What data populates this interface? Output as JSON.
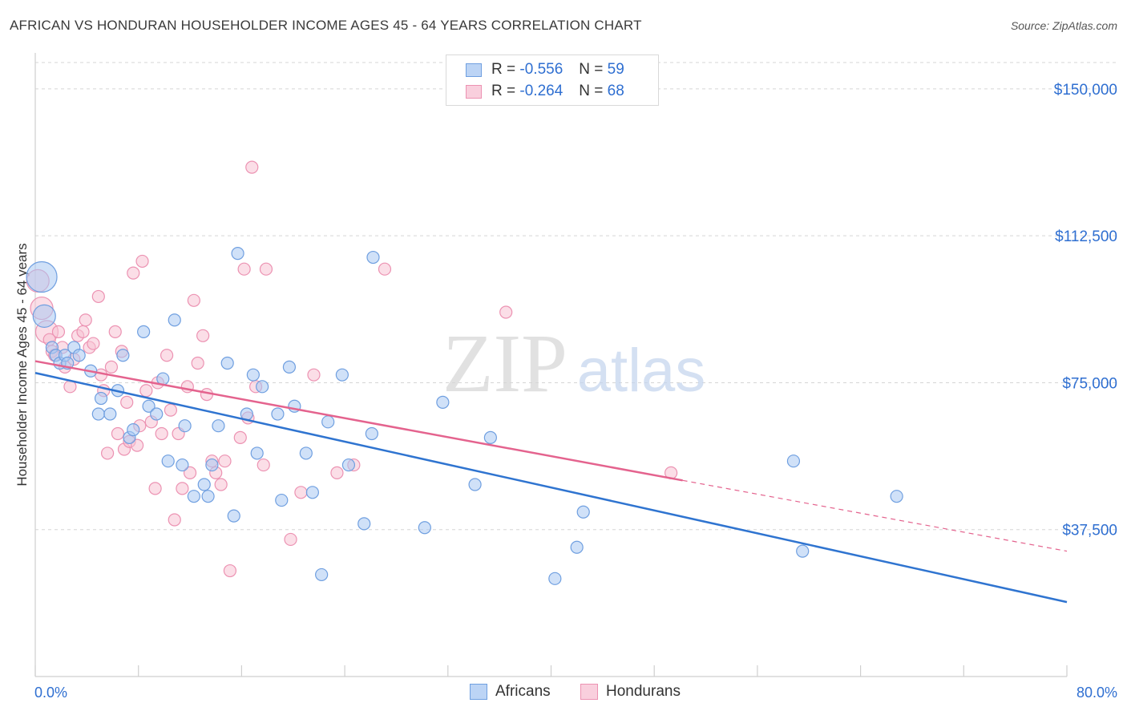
{
  "title": "AFRICAN VS HONDURAN HOUSEHOLDER INCOME AGES 45 - 64 YEARS CORRELATION CHART",
  "source": "Source: ZipAtlas.com",
  "watermark": {
    "zip": "ZIP",
    "atlas": "atlas"
  },
  "legend": {
    "africans": {
      "r_label": "R =",
      "r_value": "-0.556",
      "n_label": "N =",
      "n_value": "59"
    },
    "hondurans": {
      "r_label": "R =",
      "r_value": "-0.264",
      "n_label": "N =",
      "n_value": "68"
    }
  },
  "colors": {
    "africans_fill": "#a9c8f2",
    "africans_stroke": "#6f9fe0",
    "africans_line": "#2f74d0",
    "hondurans_fill": "#f7c2d4",
    "hondurans_stroke": "#ec92b2",
    "hondurans_line": "#e4638e",
    "tick_label": "#2f6fd1"
  },
  "chart_data": {
    "type": "scatter",
    "title": "AFRICAN VS HONDURAN HOUSEHOLDER INCOME AGES 45 - 64 YEARS CORRELATION CHART",
    "xlabel": "",
    "ylabel": "Householder Income Ages 45 - 64 years",
    "xlim": [
      0,
      80
    ],
    "ylim": [
      0,
      160000
    ],
    "x_tick_labels": [
      "0.0%",
      "80.0%"
    ],
    "y_ticks": [
      37500,
      75000,
      112500,
      150000
    ],
    "y_tick_labels": [
      "$37,500",
      "$75,000",
      "$112,500",
      "$150,000"
    ],
    "grid": true,
    "legend_position": "top-center",
    "series": [
      {
        "name": "Africans",
        "trend": {
          "x": [
            0,
            80
          ],
          "y": [
            77500,
            19000
          ],
          "dashed_from": null
        },
        "points": [
          [
            0.5,
            102000,
            3
          ],
          [
            0.7,
            92000,
            2
          ],
          [
            1.3,
            84000,
            1
          ],
          [
            1.6,
            82000,
            1
          ],
          [
            1.9,
            80000,
            1
          ],
          [
            2.3,
            82000,
            1
          ],
          [
            2.5,
            80000,
            1
          ],
          [
            3.0,
            84000,
            1
          ],
          [
            3.4,
            82000,
            1
          ],
          [
            4.3,
            78000,
            1
          ],
          [
            4.9,
            67000,
            1
          ],
          [
            5.1,
            71000,
            1
          ],
          [
            5.8,
            67000,
            1
          ],
          [
            6.4,
            73000,
            1
          ],
          [
            6.8,
            82000,
            1
          ],
          [
            7.3,
            61000,
            1
          ],
          [
            7.6,
            63000,
            1
          ],
          [
            8.4,
            88000,
            1
          ],
          [
            8.8,
            69000,
            1
          ],
          [
            9.4,
            67000,
            1
          ],
          [
            9.9,
            76000,
            1
          ],
          [
            10.3,
            55000,
            1
          ],
          [
            10.8,
            91000,
            1
          ],
          [
            11.4,
            54000,
            1
          ],
          [
            11.6,
            64000,
            1
          ],
          [
            12.3,
            46000,
            1
          ],
          [
            13.1,
            49000,
            1
          ],
          [
            13.4,
            46000,
            1
          ],
          [
            13.7,
            54000,
            1
          ],
          [
            14.2,
            64000,
            1
          ],
          [
            14.9,
            80000,
            1
          ],
          [
            15.4,
            41000,
            1
          ],
          [
            15.7,
            108000,
            1
          ],
          [
            16.4,
            67000,
            1
          ],
          [
            16.9,
            77000,
            1
          ],
          [
            17.2,
            57000,
            1
          ],
          [
            17.6,
            74000,
            1
          ],
          [
            18.8,
            67000,
            1
          ],
          [
            19.1,
            45000,
            1
          ],
          [
            19.7,
            79000,
            1
          ],
          [
            20.1,
            69000,
            1
          ],
          [
            21.0,
            57000,
            1
          ],
          [
            21.5,
            47000,
            1
          ],
          [
            22.2,
            26000,
            1
          ],
          [
            22.7,
            65000,
            1
          ],
          [
            23.8,
            77000,
            1
          ],
          [
            24.3,
            54000,
            1
          ],
          [
            25.5,
            39000,
            1
          ],
          [
            26.1,
            62000,
            1
          ],
          [
            26.2,
            107000,
            1
          ],
          [
            30.2,
            38000,
            1
          ],
          [
            31.6,
            70000,
            1
          ],
          [
            34.1,
            49000,
            1
          ],
          [
            35.3,
            61000,
            1
          ],
          [
            40.3,
            25000,
            1
          ],
          [
            42.0,
            33000,
            1
          ],
          [
            42.5,
            42000,
            1
          ],
          [
            58.8,
            55000,
            1
          ],
          [
            59.5,
            32000,
            1
          ],
          [
            66.8,
            46000,
            1
          ]
        ]
      },
      {
        "name": "Hondurans",
        "trend": {
          "x": [
            0,
            80
          ],
          "y": [
            80500,
            32000
          ],
          "dashed_from": 50.2
        },
        "points": [
          [
            0.2,
            101000,
            2
          ],
          [
            0.5,
            94000,
            2
          ],
          [
            0.9,
            88000,
            2
          ],
          [
            1.1,
            86000,
            1
          ],
          [
            1.3,
            83000,
            1
          ],
          [
            1.5,
            82000,
            1
          ],
          [
            1.8,
            88000,
            1
          ],
          [
            2.1,
            84000,
            1
          ],
          [
            2.3,
            79000,
            1
          ],
          [
            2.7,
            74000,
            1
          ],
          [
            3.0,
            81000,
            1
          ],
          [
            3.3,
            87000,
            1
          ],
          [
            3.7,
            88000,
            1
          ],
          [
            3.9,
            91000,
            1
          ],
          [
            4.2,
            84000,
            1
          ],
          [
            4.5,
            85000,
            1
          ],
          [
            4.9,
            97000,
            1
          ],
          [
            5.1,
            77000,
            1
          ],
          [
            5.3,
            73000,
            1
          ],
          [
            5.6,
            57000,
            1
          ],
          [
            5.9,
            79000,
            1
          ],
          [
            6.2,
            88000,
            1
          ],
          [
            6.4,
            62000,
            1
          ],
          [
            6.7,
            83000,
            1
          ],
          [
            6.9,
            58000,
            1
          ],
          [
            7.1,
            70000,
            1
          ],
          [
            7.3,
            60000,
            1
          ],
          [
            7.6,
            103000,
            1
          ],
          [
            7.9,
            59000,
            1
          ],
          [
            8.1,
            64000,
            1
          ],
          [
            8.3,
            106000,
            1
          ],
          [
            8.6,
            73000,
            1
          ],
          [
            9.0,
            65000,
            1
          ],
          [
            9.3,
            48000,
            1
          ],
          [
            9.5,
            75000,
            1
          ],
          [
            9.8,
            62000,
            1
          ],
          [
            10.2,
            82000,
            1
          ],
          [
            10.5,
            68000,
            1
          ],
          [
            10.8,
            40000,
            1
          ],
          [
            11.1,
            62000,
            1
          ],
          [
            11.4,
            48000,
            1
          ],
          [
            11.8,
            74000,
            1
          ],
          [
            12.0,
            52000,
            1
          ],
          [
            12.3,
            96000,
            1
          ],
          [
            12.6,
            80000,
            1
          ],
          [
            13.0,
            87000,
            1
          ],
          [
            13.3,
            72000,
            1
          ],
          [
            13.7,
            55000,
            1
          ],
          [
            14.0,
            52000,
            1
          ],
          [
            14.4,
            49000,
            1
          ],
          [
            14.7,
            55000,
            1
          ],
          [
            15.1,
            27000,
            1
          ],
          [
            15.9,
            61000,
            1
          ],
          [
            16.2,
            104000,
            1
          ],
          [
            16.5,
            66000,
            1
          ],
          [
            16.8,
            130000,
            1
          ],
          [
            17.1,
            74000,
            1
          ],
          [
            17.7,
            54000,
            1
          ],
          [
            17.9,
            104000,
            1
          ],
          [
            19.8,
            35000,
            1
          ],
          [
            20.6,
            47000,
            1
          ],
          [
            21.6,
            77000,
            1
          ],
          [
            23.4,
            52000,
            1
          ],
          [
            24.7,
            54000,
            1
          ],
          [
            27.1,
            104000,
            1
          ],
          [
            36.5,
            93000,
            1
          ],
          [
            49.3,
            52000,
            1
          ]
        ]
      }
    ]
  }
}
